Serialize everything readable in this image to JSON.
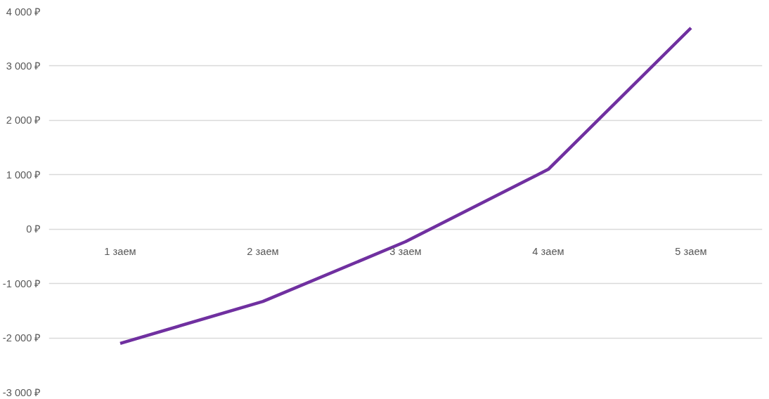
{
  "chart_data": {
    "type": "line",
    "categories": [
      "1 заем",
      "2 заем",
      "3 заем",
      "4 заем",
      "5 заем"
    ],
    "series": [
      {
        "color": "#7030a0",
        "values": [
          -2100,
          -1330,
          -230,
          1100,
          3700
        ]
      }
    ],
    "ylim": [
      -3000,
      4000
    ],
    "yticks": [
      {
        "value": -3000,
        "label": "-3 000 ₽"
      },
      {
        "value": -2000,
        "label": "-2 000 ₽"
      },
      {
        "value": -1000,
        "label": "-1 000 ₽"
      },
      {
        "value": 0,
        "label": "0 ₽"
      },
      {
        "value": 1000,
        "label": "1 000 ₽"
      },
      {
        "value": 2000,
        "label": "2 000 ₽"
      },
      {
        "value": 3000,
        "label": "3 000 ₽"
      },
      {
        "value": 4000,
        "label": "4 000 ₽"
      }
    ],
    "grid": "y",
    "marker": "none",
    "line_style": "solid"
  }
}
